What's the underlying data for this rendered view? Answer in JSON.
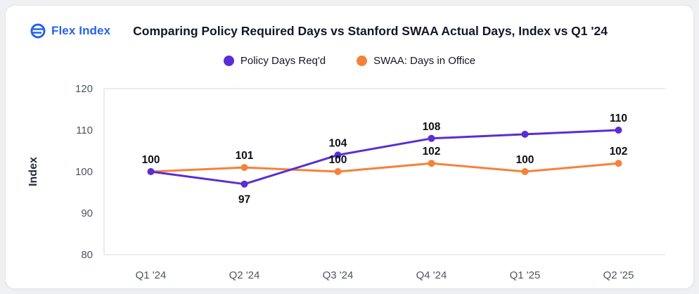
{
  "brand": {
    "name": "Flex Index",
    "color": "#2563EB"
  },
  "header": {
    "title": "Comparing Policy Required Days vs Stanford SWAA Actual Days, Index vs Q1 '24"
  },
  "chart_data": {
    "type": "line",
    "title": "Comparing Policy Required Days vs Stanford SWAA Actual Days, Index vs Q1 '24",
    "xlabel": "",
    "ylabel": "Index",
    "ylim": [
      80,
      120
    ],
    "yticks": [
      120,
      110,
      100,
      90,
      80
    ],
    "grid": "axis-frame-only",
    "legend_position": "top-center",
    "categories": [
      "Q1 '24",
      "Q2 '24",
      "Q3 '24",
      "Q4 '24",
      "Q1 '25",
      "Q2 '25"
    ],
    "series": [
      {
        "name": "Policy Days Req'd",
        "color": "#5A2ED4",
        "values": [
          100,
          97,
          104,
          108,
          109,
          110
        ],
        "labels": [
          "100",
          "97",
          "104",
          "108",
          "",
          "110"
        ],
        "label_pos": [
          "above",
          "below",
          "above",
          "above",
          "none",
          "above"
        ]
      },
      {
        "name": "SWAA: Days in Office",
        "color": "#F5823B",
        "values": [
          100,
          101,
          100,
          102,
          100,
          102
        ],
        "labels": [
          "",
          "101",
          "100",
          "102",
          "100",
          "102"
        ],
        "label_pos": [
          "none",
          "above",
          "above",
          "above",
          "above",
          "above"
        ]
      }
    ],
    "colors": {
      "axis_line": "#e3e6ea",
      "tick_text": "#4b5563",
      "value_label": "#0d0f14"
    }
  }
}
